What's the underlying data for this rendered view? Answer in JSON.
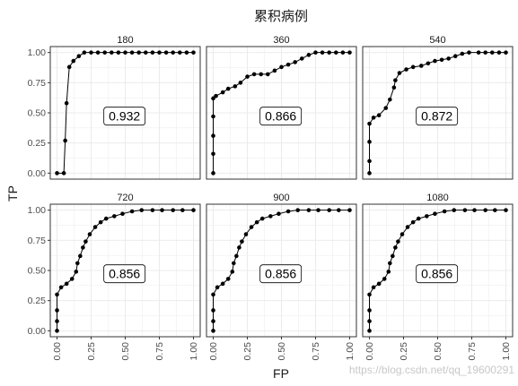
{
  "chart_data": {
    "type": "line",
    "title": "累积病例",
    "xlabel": "FP",
    "ylabel": "TP",
    "xlim": [
      0,
      1
    ],
    "ylim": [
      0,
      1
    ],
    "x_ticks": [
      "0.00",
      "0.25",
      "0.50",
      "0.75",
      "1.00"
    ],
    "y_ticks": [
      "0.00",
      "0.25",
      "0.50",
      "0.75",
      "1.00"
    ],
    "grid": true,
    "panels": [
      {
        "label": "180",
        "auc": "0.932",
        "x": [
          0,
          0.05,
          0.06,
          0.07,
          0.09,
          0.12,
          0.16,
          0.2,
          0.25,
          0.3,
          0.35,
          0.4,
          0.45,
          0.5,
          0.55,
          0.6,
          0.65,
          0.7,
          0.75,
          0.8,
          0.85,
          0.9,
          0.95,
          1.0
        ],
        "y": [
          0,
          0,
          0.27,
          0.58,
          0.88,
          0.93,
          0.97,
          1,
          1,
          1,
          1,
          1,
          1,
          1,
          1,
          1,
          1,
          1,
          1,
          1,
          1,
          1,
          1,
          1
        ]
      },
      {
        "label": "360",
        "auc": "0.866",
        "x": [
          0,
          0,
          0,
          0,
          0,
          0.02,
          0.07,
          0.11,
          0.16,
          0.2,
          0.25,
          0.3,
          0.35,
          0.4,
          0.45,
          0.5,
          0.55,
          0.6,
          0.65,
          0.7,
          0.75,
          0.8,
          0.85,
          0.9,
          0.95,
          1.0
        ],
        "y": [
          0,
          0.16,
          0.31,
          0.47,
          0.62,
          0.64,
          0.67,
          0.7,
          0.72,
          0.75,
          0.8,
          0.82,
          0.82,
          0.82,
          0.85,
          0.88,
          0.9,
          0.92,
          0.95,
          0.98,
          1,
          1,
          1,
          1,
          1,
          1
        ]
      },
      {
        "label": "540",
        "auc": "0.872",
        "x": [
          0,
          0,
          0,
          0,
          0.03,
          0.07,
          0.12,
          0.15,
          0.18,
          0.19,
          0.22,
          0.27,
          0.32,
          0.38,
          0.43,
          0.48,
          0.53,
          0.58,
          0.63,
          0.68,
          0.73,
          0.8,
          0.85,
          0.9,
          0.95,
          1.0
        ],
        "y": [
          0,
          0.1,
          0.26,
          0.41,
          0.46,
          0.48,
          0.54,
          0.61,
          0.71,
          0.77,
          0.83,
          0.86,
          0.88,
          0.89,
          0.91,
          0.93,
          0.94,
          0.95,
          0.97,
          0.99,
          1,
          1,
          1,
          1,
          1,
          1
        ]
      },
      {
        "label": "720",
        "auc": "0.856",
        "x": [
          0,
          0,
          0,
          0,
          0.03,
          0.07,
          0.11,
          0.14,
          0.15,
          0.17,
          0.19,
          0.21,
          0.24,
          0.28,
          0.32,
          0.36,
          0.42,
          0.48,
          0.55,
          0.62,
          0.7,
          0.77,
          0.85,
          0.92,
          1.0
        ],
        "y": [
          0,
          0.08,
          0.17,
          0.3,
          0.36,
          0.39,
          0.43,
          0.49,
          0.56,
          0.62,
          0.69,
          0.74,
          0.8,
          0.86,
          0.9,
          0.93,
          0.95,
          0.97,
          0.99,
          1,
          1,
          1,
          1,
          1,
          1
        ]
      },
      {
        "label": "900",
        "auc": "0.856",
        "x": [
          0,
          0,
          0,
          0,
          0.03,
          0.07,
          0.11,
          0.14,
          0.15,
          0.17,
          0.19,
          0.21,
          0.24,
          0.28,
          0.32,
          0.36,
          0.42,
          0.48,
          0.55,
          0.62,
          0.7,
          0.77,
          0.85,
          0.92,
          1.0
        ],
        "y": [
          0,
          0.08,
          0.17,
          0.3,
          0.36,
          0.39,
          0.43,
          0.49,
          0.56,
          0.62,
          0.69,
          0.74,
          0.8,
          0.86,
          0.9,
          0.93,
          0.95,
          0.97,
          0.99,
          1,
          1,
          1,
          1,
          1,
          1
        ]
      },
      {
        "label": "1080",
        "auc": "0.856",
        "x": [
          0,
          0,
          0,
          0,
          0.03,
          0.07,
          0.11,
          0.14,
          0.15,
          0.17,
          0.19,
          0.21,
          0.24,
          0.28,
          0.32,
          0.36,
          0.42,
          0.48,
          0.55,
          0.62,
          0.7,
          0.77,
          0.85,
          0.92,
          1.0
        ],
        "y": [
          0,
          0.08,
          0.17,
          0.3,
          0.36,
          0.39,
          0.43,
          0.49,
          0.56,
          0.62,
          0.69,
          0.74,
          0.8,
          0.86,
          0.9,
          0.93,
          0.95,
          0.97,
          0.99,
          1,
          1,
          1,
          1,
          1,
          1
        ]
      }
    ]
  },
  "watermark": "https://blog.csdn.net/qq_19600291",
  "colors": {
    "line": "#000000",
    "grid": "#ebebeb",
    "border": "#333333",
    "strip_bg": "#ffffff"
  }
}
